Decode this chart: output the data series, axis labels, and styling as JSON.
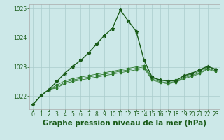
{
  "title": "Graphe pression niveau de la mer (hPa)",
  "background_color": "#cce8e8",
  "grid_color": "#aacccc",
  "line_color_main": "#1a5c1a",
  "line_color_secondary": "#2d7a2d",
  "xlim": [
    -0.5,
    23.5
  ],
  "ylim": [
    1021.55,
    1025.15
  ],
  "yticks": [
    1022,
    1023,
    1024,
    1025
  ],
  "xticks": [
    0,
    1,
    2,
    3,
    4,
    5,
    6,
    7,
    8,
    9,
    10,
    11,
    12,
    13,
    14,
    15,
    16,
    17,
    18,
    19,
    20,
    21,
    22,
    23
  ],
  "series": [
    [
      1021.72,
      1022.02,
      1022.22,
      1022.5,
      1022.78,
      1023.02,
      1023.22,
      1023.48,
      1023.78,
      1024.08,
      1024.32,
      1024.95,
      1024.58,
      1024.22,
      1023.22,
      1022.65,
      1022.55,
      1022.52,
      1022.52,
      1022.7,
      1022.78,
      1022.9,
      1023.02,
      1022.92
    ],
    [
      1021.72,
      1022.02,
      1022.22,
      1022.38,
      1022.52,
      1022.6,
      1022.65,
      1022.7,
      1022.75,
      1022.8,
      1022.85,
      1022.9,
      1022.95,
      1023.0,
      1023.05,
      1022.62,
      1022.55,
      1022.5,
      1022.55,
      1022.68,
      1022.75,
      1022.85,
      1023.0,
      1022.92
    ],
    [
      1021.72,
      1022.02,
      1022.22,
      1022.32,
      1022.47,
      1022.55,
      1022.6,
      1022.65,
      1022.7,
      1022.75,
      1022.8,
      1022.85,
      1022.9,
      1022.95,
      1023.0,
      1022.58,
      1022.5,
      1022.45,
      1022.5,
      1022.63,
      1022.7,
      1022.8,
      1022.95,
      1022.87
    ],
    [
      1021.72,
      1022.02,
      1022.22,
      1022.28,
      1022.43,
      1022.5,
      1022.55,
      1022.6,
      1022.65,
      1022.7,
      1022.75,
      1022.8,
      1022.85,
      1022.9,
      1022.95,
      1022.55,
      1022.47,
      1022.42,
      1022.47,
      1022.6,
      1022.67,
      1022.77,
      1022.92,
      1022.84
    ]
  ],
  "marker": "*",
  "markersize_main": 3.5,
  "markersize_sec": 2.5,
  "linewidth_main": 1.0,
  "linewidth_sec": 0.6,
  "title_fontsize": 7.5,
  "tick_fontsize": 5.5,
  "title_color": "#1a5c1a",
  "tick_color": "#1a5c1a",
  "spine_color": "#aaaaaa"
}
